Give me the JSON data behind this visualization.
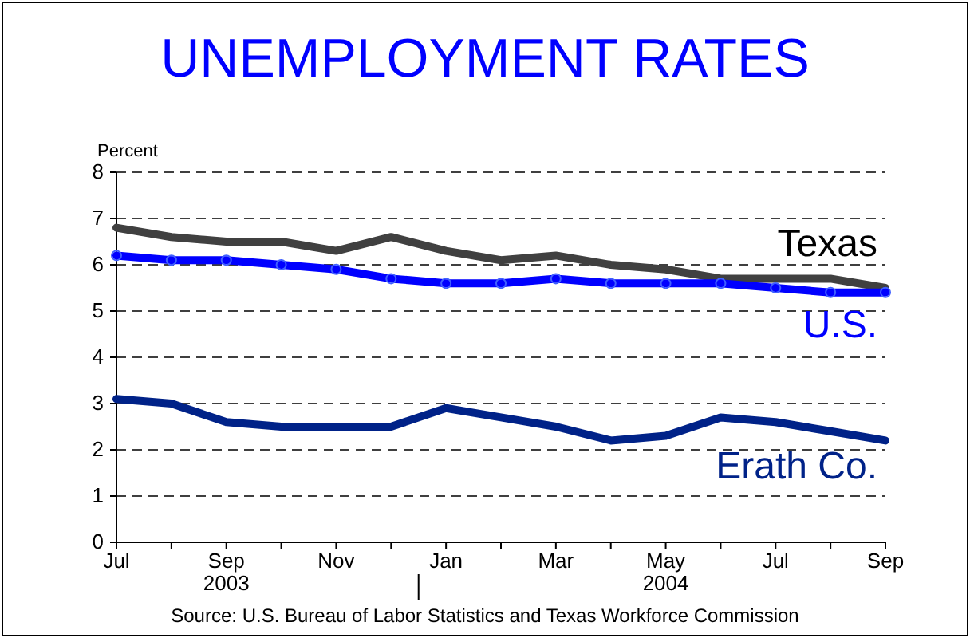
{
  "chart_data": {
    "type": "line",
    "title": "UNEMPLOYMENT RATES",
    "ylabel": "Percent",
    "categories": [
      "Jul",
      null,
      "Sep\n2003",
      null,
      "Nov",
      null,
      "Jan",
      null,
      "Mar",
      null,
      "May\n2004",
      null,
      "Jul",
      null,
      "Sep"
    ],
    "series": [
      {
        "name": "Texas",
        "color": "#404040",
        "marker": "none",
        "values": [
          6.8,
          6.6,
          6.5,
          6.5,
          6.3,
          6.6,
          6.3,
          6.1,
          6.2,
          6.0,
          5.9,
          5.7,
          5.7,
          5.7,
          5.5
        ]
      },
      {
        "name": "U.S.",
        "color": "#0000ff",
        "marker": "circle",
        "values": [
          6.2,
          6.1,
          6.1,
          6.0,
          5.9,
          5.7,
          5.6,
          5.6,
          5.7,
          5.6,
          5.6,
          5.6,
          5.5,
          5.4,
          5.4
        ]
      },
      {
        "name": "Erath Co.",
        "color": "#002288",
        "marker": "none",
        "values": [
          3.1,
          3.0,
          2.6,
          2.5,
          2.5,
          2.5,
          2.9,
          2.7,
          2.5,
          2.2,
          2.3,
          2.7,
          2.6,
          2.4,
          2.2
        ]
      }
    ],
    "ylim": [
      0,
      8
    ],
    "yticks": [
      0,
      1,
      2,
      3,
      4,
      5,
      6,
      7,
      8
    ],
    "grid": "y",
    "line_style": "solid",
    "annotations": [
      "Source:  U.S. Bureau of Labor Statistics and Texas Workforce Commission"
    ]
  }
}
